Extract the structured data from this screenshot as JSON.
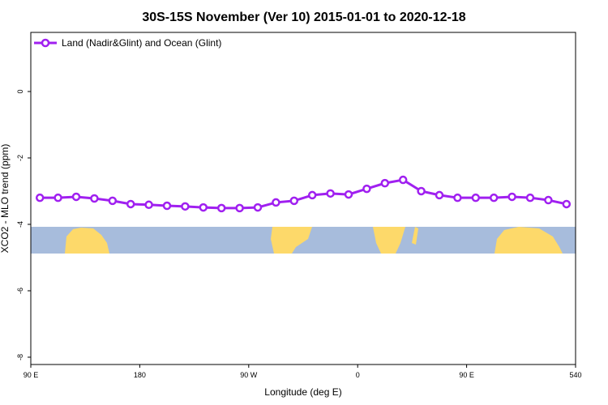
{
  "chart_data": {
    "type": "line",
    "title": "30S-15S November (Ver 10)   2015-01-01 to 2020-12-18",
    "x_label": "Longitude (deg E)",
    "y_label": "XCO2 - MLO trend (ppm)",
    "x": [
      97.5,
      112.5,
      127.5,
      142.5,
      157.5,
      172.5,
      187.5,
      202.5,
      217.5,
      232.5,
      247.5,
      262.5,
      277.5,
      292.5,
      307.5,
      322.5,
      337.5,
      352.5,
      367.5,
      382.5,
      397.5,
      412.5,
      427.5,
      442.5,
      457.5,
      472.5,
      487.5,
      502.5,
      517.5,
      532.5
    ],
    "series": [
      {
        "name": "Land (Nadir&Glint) and Ocean (Glint)",
        "color": "#a020f0",
        "values": [
          -3.2,
          -3.2,
          -3.17,
          -3.22,
          -3.29,
          -3.39,
          -3.41,
          -3.44,
          -3.46,
          -3.49,
          -3.51,
          -3.51,
          -3.49,
          -3.34,
          -3.29,
          -3.12,
          -3.07,
          -3.1,
          -2.93,
          -2.76,
          -2.66,
          -3.0,
          -3.12,
          -3.2,
          -3.2,
          -3.2,
          -3.17,
          -3.2,
          -3.27,
          -3.39
        ]
      }
    ],
    "xlim": [
      90,
      540
    ],
    "xticks": [
      {
        "value": 90,
        "label": "90 E"
      },
      180,
      {
        "value": 270,
        "label": "90 W"
      },
      {
        "value": 360,
        "label": "0"
      },
      {
        "value": 450,
        "label": "90 E"
      },
      540
    ],
    "ylim": [
      -8.22,
      1.78
    ],
    "yticks": [
      0,
      -2,
      -4,
      -6,
      -8
    ],
    "legend": "upper left"
  }
}
